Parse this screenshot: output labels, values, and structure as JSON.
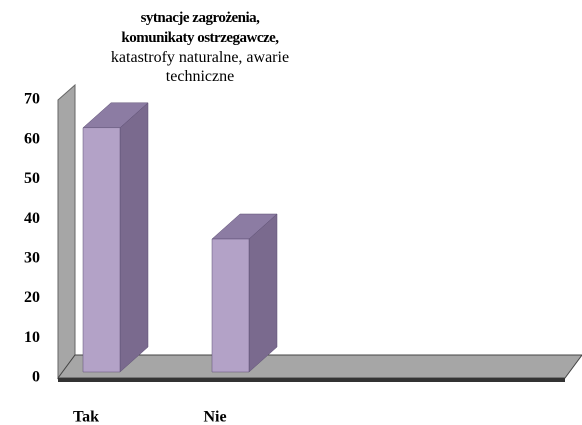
{
  "chart_data": {
    "type": "bar3d",
    "title": "sytnacje zagrożenia, komunikaty ostrzegawcze,",
    "subtitle": "katastrofy naturalne,  awarie techniczne",
    "categories": [
      "Tak",
      "Nie"
    ],
    "values": [
      63,
      35
    ],
    "color": "#b3a2c7",
    "ylim": [
      0,
      70
    ],
    "yticks": [
      0,
      10,
      20,
      30,
      40,
      50,
      60,
      70
    ],
    "grid": false
  }
}
